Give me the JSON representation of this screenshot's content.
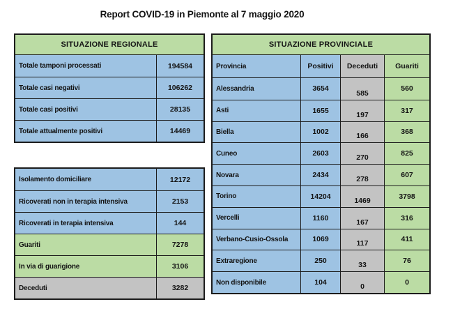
{
  "title": "Report COVID-19 in Piemonte al 7 maggio 2020",
  "colors": {
    "blue": "#9EC3E3",
    "green": "#BBDCA4",
    "gray": "#C3C3C3",
    "border": "#1C1C1C",
    "text": "#141414",
    "background": "#FFFFFF"
  },
  "regional": {
    "header": "SITUAZIONE REGIONALE",
    "rows": [
      {
        "label": "Totale tamponi processati",
        "value": "194584",
        "color": "blue"
      },
      {
        "label": "Totale casi negativi",
        "value": "106262",
        "color": "blue"
      },
      {
        "label": "Totale casi positivi",
        "value": "28135",
        "color": "blue"
      },
      {
        "label": "Totale attualmente positivi",
        "value": "14469",
        "color": "blue"
      }
    ]
  },
  "detail": {
    "rows": [
      {
        "label": "Isolamento domiciliare",
        "value": "12172",
        "color": "blue"
      },
      {
        "label": "Ricoverati non in terapia intensiva",
        "value": "2153",
        "color": "blue"
      },
      {
        "label": "Ricoverati in terapia intensiva",
        "value": "144",
        "color": "blue"
      },
      {
        "label": "Guariti",
        "value": "7278",
        "color": "green"
      },
      {
        "label": "In via di guarigione",
        "value": "3106",
        "color": "green"
      },
      {
        "label": "Deceduti",
        "value": "3282",
        "color": "gray"
      }
    ]
  },
  "provincial": {
    "header": "SITUAZIONE PROVINCIALE",
    "columns": [
      "Provincia",
      "Positivi",
      "Deceduti",
      "Guariti"
    ],
    "rows": [
      {
        "provincia": "Alessandria",
        "positivi": "3654",
        "deceduti": "585",
        "guariti": "560"
      },
      {
        "provincia": "Asti",
        "positivi": "1655",
        "deceduti": "197",
        "guariti": "317"
      },
      {
        "provincia": "Biella",
        "positivi": "1002",
        "deceduti": "166",
        "guariti": "368"
      },
      {
        "provincia": "Cuneo",
        "positivi": "2603",
        "deceduti": "270",
        "guariti": "825"
      },
      {
        "provincia": "Novara",
        "positivi": "2434",
        "deceduti": "278",
        "guariti": "607"
      },
      {
        "provincia": "Torino",
        "positivi": "14204",
        "deceduti": "1469",
        "guariti": "3798"
      },
      {
        "provincia": "Vercelli",
        "positivi": "1160",
        "deceduti": "167",
        "guariti": "316"
      },
      {
        "provincia": "Verbano-Cusio-Ossola",
        "positivi": "1069",
        "deceduti": "117",
        "guariti": "411"
      },
      {
        "provincia": "Extraregione",
        "positivi": "250",
        "deceduti": "33",
        "guariti": "76"
      },
      {
        "provincia": "Non disponibile",
        "positivi": "104",
        "deceduti": "0",
        "guariti": "0"
      }
    ]
  }
}
